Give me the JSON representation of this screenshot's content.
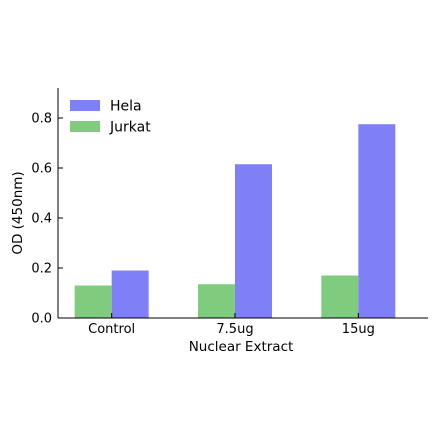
{
  "chart_data": {
    "type": "bar",
    "categories": [
      "Control",
      "7.5ug",
      "15ug"
    ],
    "series": [
      {
        "name": "Jurkat",
        "values": [
          0.13,
          0.135,
          0.17
        ],
        "color": "#7fcc7f"
      },
      {
        "name": "Hela",
        "values": [
          0.19,
          0.615,
          0.775
        ],
        "color": "#7f7ff7"
      }
    ],
    "legend_order": [
      "Hela",
      "Jurkat"
    ],
    "xlabel": "Nuclear Extract",
    "ylabel": "OD (450nm)",
    "ylim": [
      0,
      0.92
    ],
    "yticks": [
      "0.0",
      "0.2",
      "0.4",
      "0.6",
      "0.8"
    ],
    "ytick_values": [
      0,
      0.2,
      0.4,
      0.6,
      0.8
    ],
    "grid": false,
    "legend_position": "top-left"
  }
}
